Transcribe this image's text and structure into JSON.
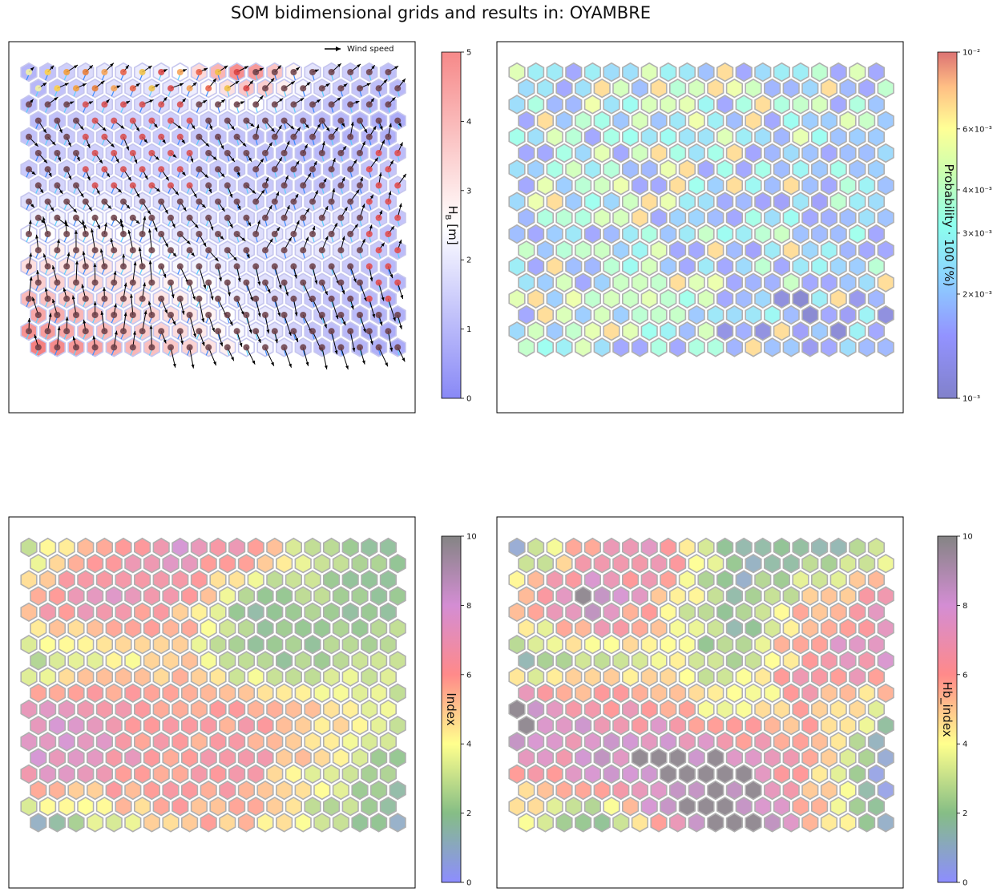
{
  "title": "SOM bidimensional grids and results in: OYAMBRE",
  "grid": {
    "rows": 18,
    "cols": 20
  },
  "chart_data": [
    {
      "type": "heatmap",
      "subtype": "hexagonal-som-grid-with-vectors",
      "panel": "top-left",
      "colorbar": {
        "label": "H_B [m]",
        "label_main": "H",
        "label_sub": "B",
        "label_unit": " [m]",
        "scale": "linear",
        "range": [
          0,
          5
        ],
        "ticks": [
          "0",
          "1",
          "2",
          "3",
          "4",
          "5"
        ],
        "colormap": "bwr"
      },
      "legend": {
        "label": "Wind speed",
        "placement": "top-right"
      },
      "pattern": "Hs highest (red, ~4-5 m) in the lower-left corner and top-center; lowest (blue, ~0.5-1 m) on the right half; nodes carry dots coloured by wind direction and black/blue arrows for wind and wave direction",
      "value_grid_coarse": [
        [
          1.0,
          2.0,
          2.2,
          4.8,
          1.8,
          1.2
        ],
        [
          1.2,
          1.5,
          1.4,
          1.2,
          1.0,
          0.8
        ],
        [
          1.5,
          1.8,
          1.6,
          1.4,
          1.2,
          1.5
        ],
        [
          2.5,
          2.8,
          2.0,
          1.8,
          2.2,
          1.2
        ],
        [
          3.6,
          3.2,
          2.8,
          2.0,
          1.4,
          1.0
        ],
        [
          4.8,
          4.0,
          3.4,
          2.4,
          1.2,
          0.8
        ]
      ]
    },
    {
      "type": "heatmap",
      "subtype": "hexagonal-som-grid",
      "panel": "top-right",
      "colorbar": {
        "label": "Probability · 100 (%)",
        "scale": "log",
        "range": [
          0.001,
          0.01
        ],
        "ticks": [
          "10⁻³",
          "2×10⁻³",
          "3×10⁻³",
          "4×10⁻³",
          "6×10⁻³",
          "10⁻²"
        ],
        "colormap": "jet"
      },
      "pattern": "mostly cyan/light-green (~2-3×10⁻³) with blue low-probability patches on the right and bottom, scattered yellow/orange cells (~4-6×10⁻³)"
    },
    {
      "type": "heatmap",
      "subtype": "hexagonal-som-grid",
      "panel": "bottom-left",
      "colorbar": {
        "label": "Index",
        "scale": "linear",
        "range": [
          0,
          10
        ],
        "ticks": [
          "0",
          "2",
          "4",
          "6",
          "8",
          "10"
        ],
        "colormap": "gist_stern-like"
      },
      "pattern": "upper-left purple/pink band, green/teal region right-middle, central band of orange/red/pink, teal at the bottom-left and bottom-right"
    },
    {
      "type": "heatmap",
      "subtype": "hexagonal-som-grid",
      "panel": "bottom-right",
      "colorbar": {
        "label": "Hb_index",
        "scale": "linear",
        "range": [
          0,
          10
        ],
        "ticks": [
          "0",
          "2",
          "4",
          "6",
          "8",
          "10"
        ],
        "colormap": "gist_stern-like"
      },
      "pattern": "large grey (~10) region in lower-middle and left-middle, blue patches in the upper-right and lower-left, mixture of orange/pink/yellow elsewhere"
    }
  ]
}
